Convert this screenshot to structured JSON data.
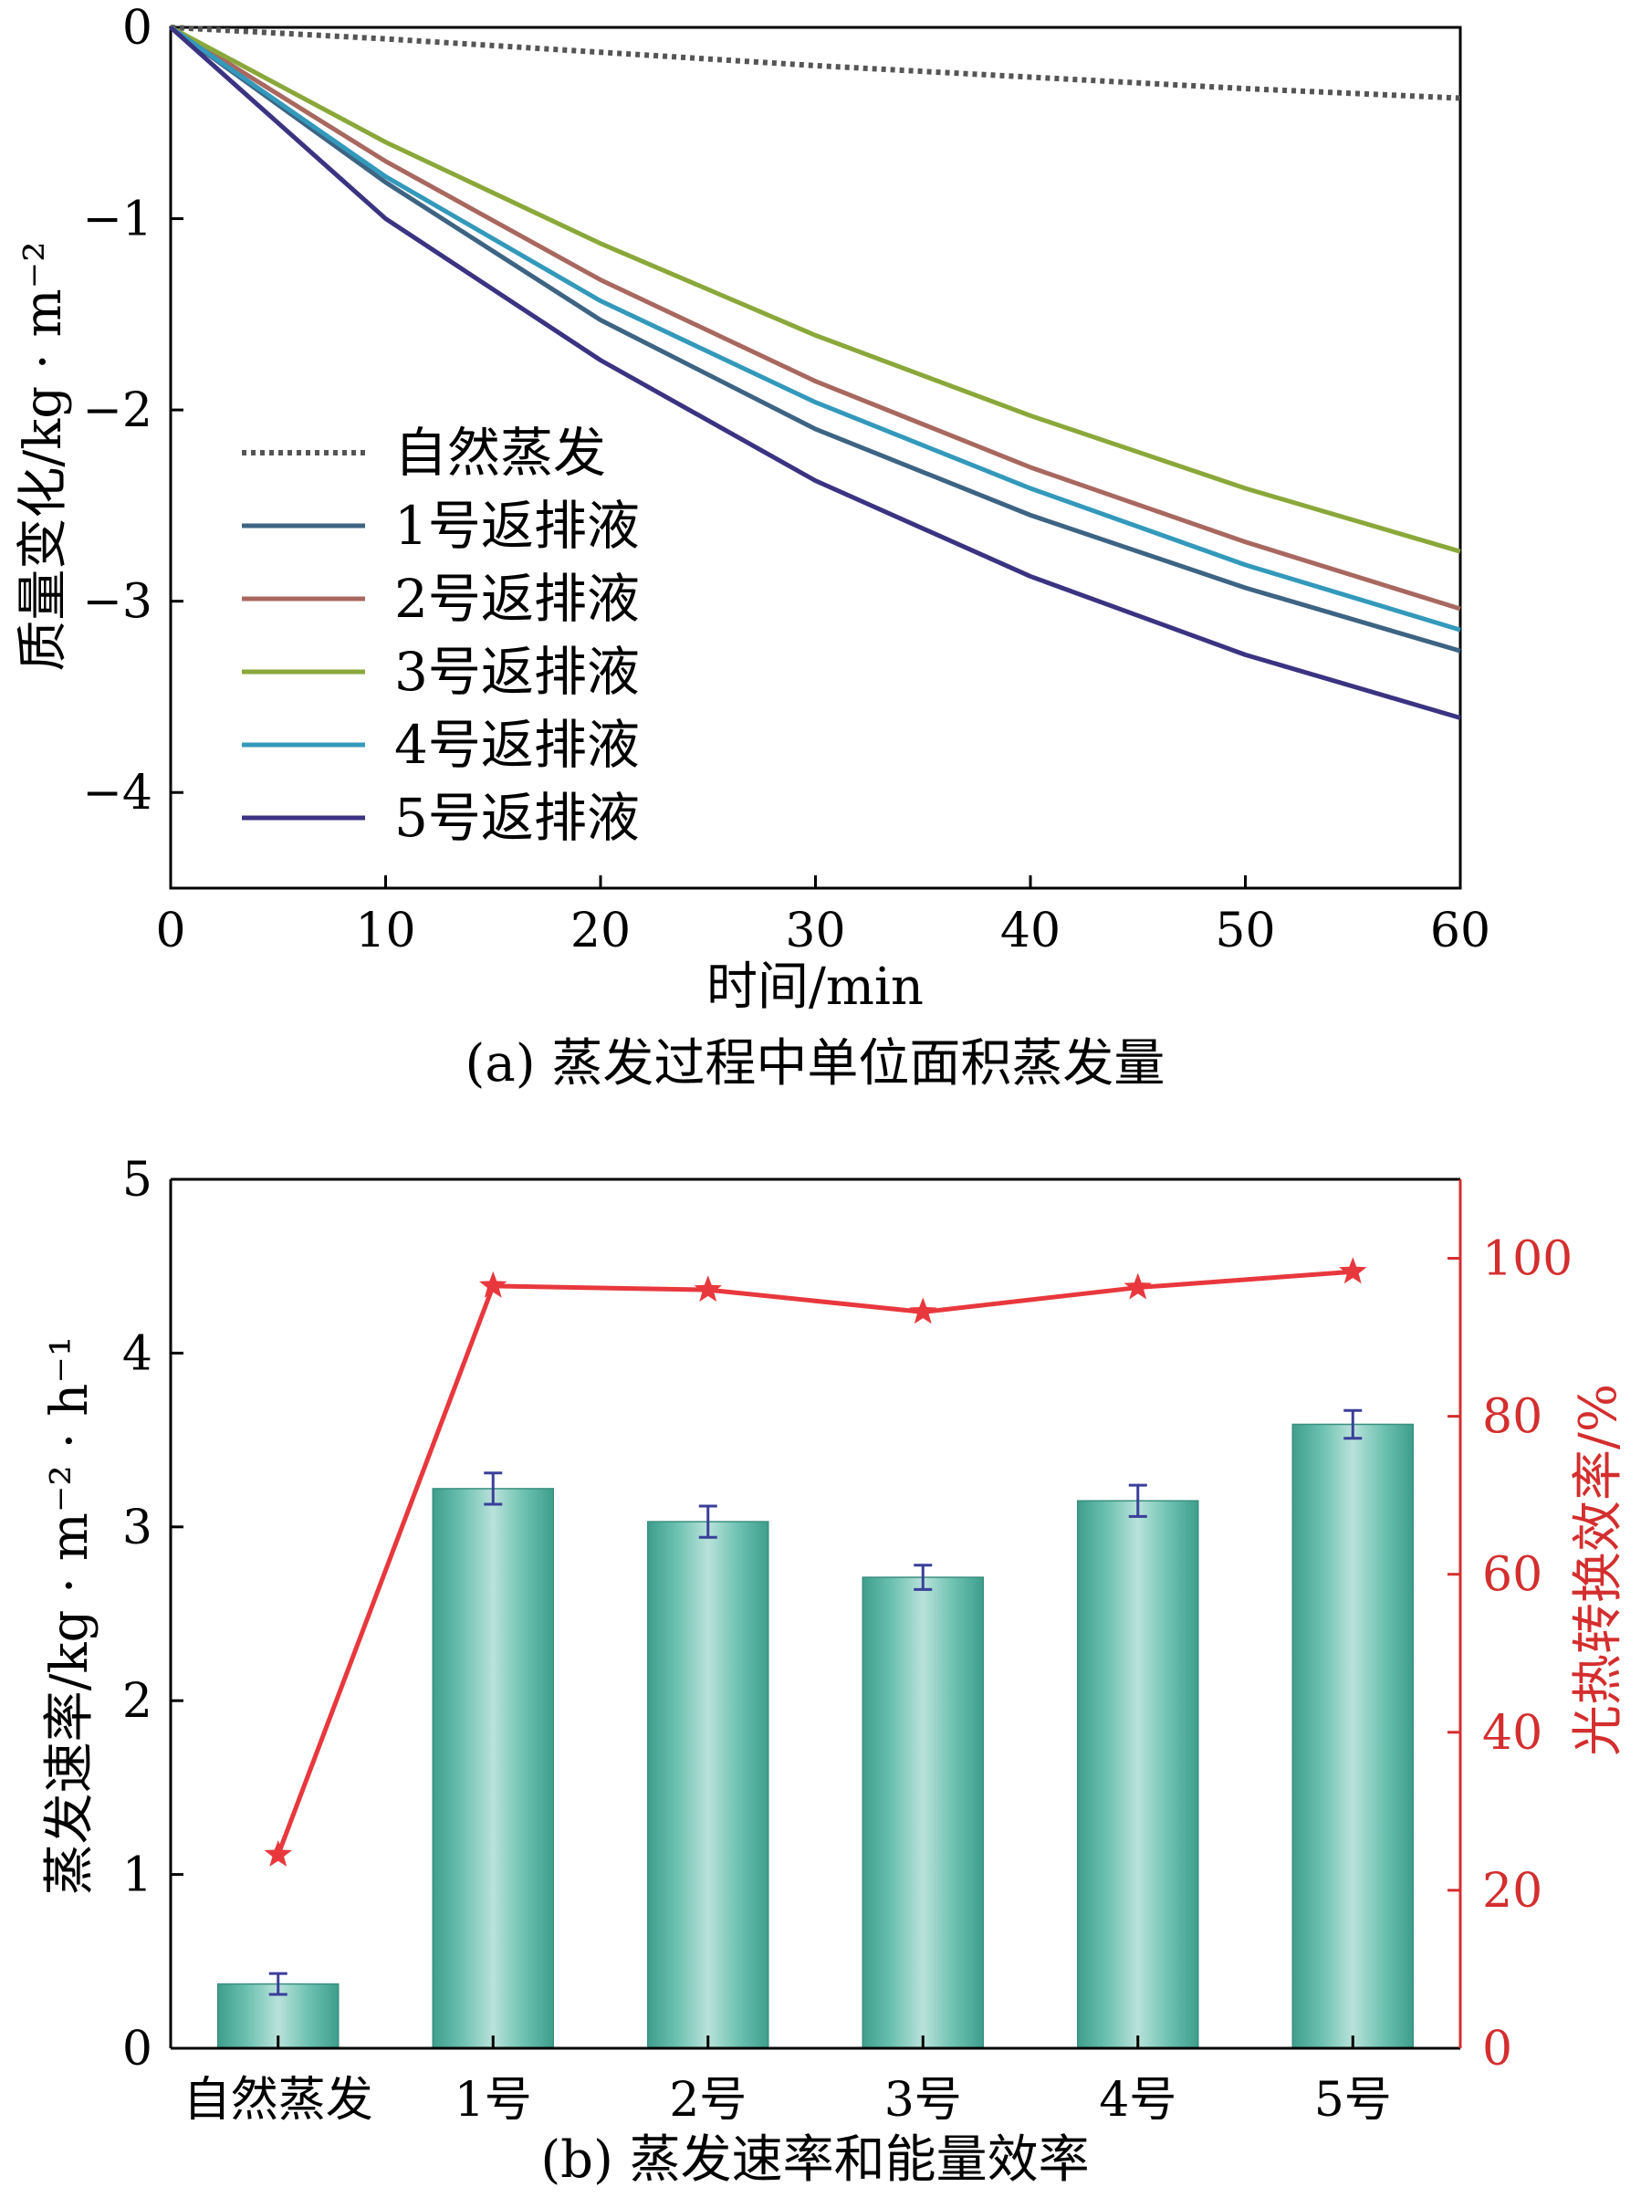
{
  "chart_data": [
    {
      "type": "line",
      "title": "(a) 蒸发过程中单位面积蒸发量",
      "xlabel": "时间/min",
      "ylabel": "质量变化/kg · m⁻²",
      "xlim": [
        0,
        60
      ],
      "ylim": [
        -4.5,
        0
      ],
      "xticks": [
        "0",
        "10",
        "20",
        "30",
        "40",
        "50",
        "60"
      ],
      "yticks": [
        "0",
        "−1",
        "−2",
        "−3",
        "−4"
      ],
      "x": [
        0,
        10,
        20,
        30,
        40,
        50,
        60
      ],
      "legend_position": "lower-left",
      "series": [
        {
          "name": "自然蒸发",
          "color": "#555555",
          "style": "dotted",
          "values": [
            0,
            -0.06,
            -0.13,
            -0.2,
            -0.26,
            -0.32,
            -0.37
          ]
        },
        {
          "name": "1号返排液",
          "color": "#3d6483",
          "style": "solid",
          "values": [
            0,
            -0.81,
            -1.53,
            -2.1,
            -2.55,
            -2.93,
            -3.26
          ]
        },
        {
          "name": "2号返排液",
          "color": "#a8685f",
          "style": "solid",
          "values": [
            0,
            -0.7,
            -1.32,
            -1.85,
            -2.3,
            -2.69,
            -3.04
          ]
        },
        {
          "name": "3号返排液",
          "color": "#8aa83a",
          "style": "solid",
          "values": [
            0,
            -0.6,
            -1.13,
            -1.61,
            -2.03,
            -2.41,
            -2.74
          ]
        },
        {
          "name": "4号返排液",
          "color": "#3399bb",
          "style": "solid",
          "values": [
            0,
            -0.78,
            -1.43,
            -1.96,
            -2.41,
            -2.81,
            -3.15
          ]
        },
        {
          "name": "5号返排液",
          "color": "#3b3382",
          "style": "solid",
          "values": [
            0,
            -1.0,
            -1.74,
            -2.37,
            -2.87,
            -3.28,
            -3.61
          ]
        }
      ]
    },
    {
      "type": "bar",
      "title": "(b) 蒸发速率和能量效率",
      "categories": [
        "自然蒸发",
        "1号",
        "2号",
        "3号",
        "4号",
        "5号"
      ],
      "ylabel": "蒸发速率/kg · m⁻² · h⁻¹",
      "ylim": [
        0,
        5
      ],
      "yticks": [
        "0",
        "1",
        "2",
        "3",
        "4",
        "5"
      ],
      "bar_color": "#5fbfae",
      "errorbar_color": "#3a3f9a",
      "series": [
        {
          "name": "蒸发速率",
          "axis": "left",
          "values": [
            0.37,
            3.22,
            3.03,
            2.71,
            3.15,
            3.59
          ],
          "errors": [
            0.06,
            0.09,
            0.09,
            0.07,
            0.09,
            0.08
          ]
        },
        {
          "name": "光热转换效率",
          "axis": "right",
          "color": "#e8383d",
          "marker": "star",
          "values": [
            24.5,
            96.5,
            96,
            93.2,
            96.3,
            98.3
          ]
        }
      ],
      "y2label": "光热转换效率/%",
      "y2lim": [
        0,
        110
      ],
      "y2ticks": [
        "0",
        "20",
        "40",
        "60",
        "80",
        "100"
      ]
    }
  ]
}
